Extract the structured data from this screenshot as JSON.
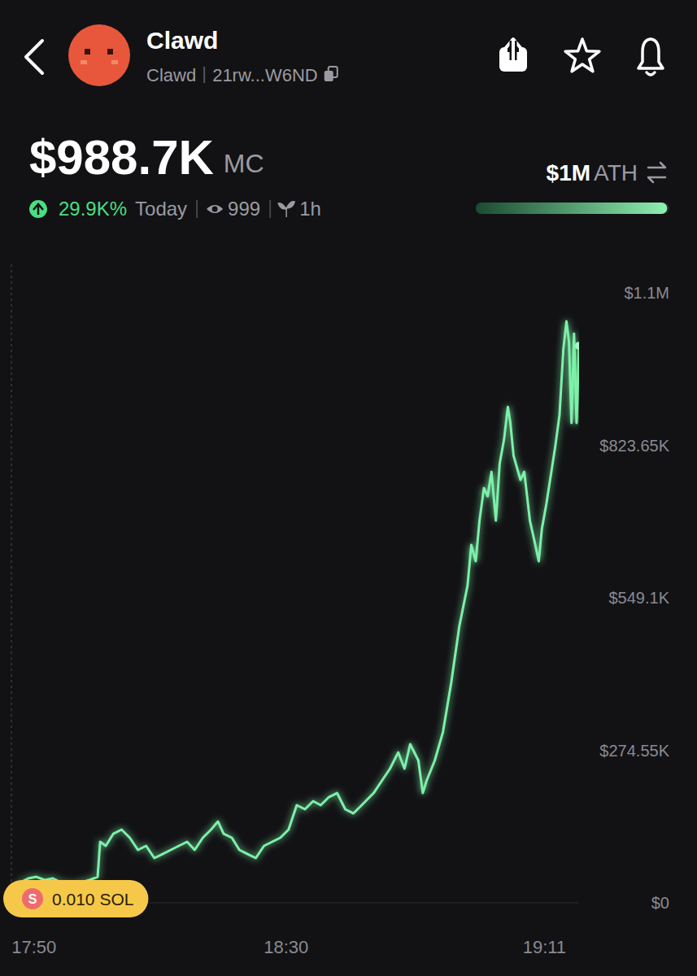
{
  "header": {
    "name": "Clawd",
    "symbol": "Clawd",
    "address": "21rw...W6ND",
    "market_cap": "$988.7K",
    "market_cap_unit": "MC",
    "change": "29.9K%",
    "period": "Today",
    "viewers": "999",
    "age": "1h",
    "ath": "$1M",
    "ath_label": "ATH",
    "market_cap_value": 988700,
    "ath_value": 1000000
  },
  "chart_data": {
    "type": "line",
    "color": "#7df0a9",
    "x": [
      1065.9,
      1066.5,
      1067.8,
      1069.1,
      1070.4,
      1071.7,
      1073.0,
      1074.3,
      1076.2,
      1077.5,
      1078.8,
      1080.1,
      1080.5,
      1081.4,
      1082.6,
      1083.9,
      1085.2,
      1086.5,
      1087.8,
      1089.1,
      1090.4,
      1091.7,
      1093.0,
      1094.3,
      1095.5,
      1096.8,
      1098.1,
      1099.2,
      1100.1,
      1101.4,
      1102.6,
      1103.9,
      1105.2,
      1106.5,
      1107.8,
      1109.1,
      1110.4,
      1111.7,
      1113.0,
      1114.3,
      1115.5,
      1116.8,
      1118.1,
      1119.4,
      1120.7,
      1122.0,
      1123.9,
      1125.2,
      1126.5,
      1127.8,
      1128.8,
      1129.7,
      1131.0,
      1131.7,
      1132.3,
      1133.6,
      1134.9,
      1136.2,
      1137.5,
      1138.8,
      1139.4,
      1140.1,
      1140.7,
      1141.4,
      1142.0,
      1142.6,
      1143.3,
      1143.9,
      1144.6,
      1145.2,
      1145.6,
      1146.1,
      1147.2,
      1147.8,
      1148.7,
      1149.7,
      1150.1,
      1150.6,
      1151.3,
      1152.1,
      1152.7,
      1153.4,
      1154.0,
      1154.5,
      1154.9,
      1155.3,
      1155.7,
      1156.1,
      1156.5
    ],
    "values": [
      0,
      14600,
      36600,
      43900,
      46800,
      41000,
      43900,
      36600,
      32200,
      36600,
      41000,
      46800,
      109800,
      102500,
      124400,
      131800,
      117100,
      95200,
      102500,
      80500,
      87800,
      95200,
      102500,
      109800,
      95200,
      117100,
      131800,
      146400,
      124400,
      117100,
      95200,
      87800,
      80500,
      102500,
      109800,
      117100,
      131800,
      175700,
      168400,
      183000,
      175700,
      190300,
      197600,
      168400,
      161000,
      175700,
      197600,
      219600,
      241600,
      270800,
      241600,
      285500,
      256200,
      197600,
      219600,
      256200,
      307400,
      395300,
      497800,
      571000,
      644200,
      614900,
      688100,
      746600,
      732000,
      775900,
      688100,
      790600,
      834500,
      893000,
      863800,
      805200,
      761300,
      775900,
      688100,
      636800,
      614900,
      673400,
      717400,
      775900,
      819800,
      878400,
      995500,
      1046800,
      1010200,
      863800,
      1024800,
      863800,
      1002800
    ],
    "xlim": [
      1065.9,
      1156.5
    ],
    "xticks": [
      {
        "value": 1070,
        "label": "17:50"
      },
      {
        "value": 1110,
        "label": "18:30"
      },
      {
        "value": 1151,
        "label": "19:11"
      }
    ],
    "ylim": [
      0,
      1098200
    ],
    "yticks": [
      {
        "value": 0,
        "label": "$0"
      },
      {
        "value": 274550,
        "label": "$274.55K"
      },
      {
        "value": 549100,
        "label": "$549.1K"
      },
      {
        "value": 823650,
        "label": "$823.65K"
      },
      {
        "value": 1098200,
        "label": "$1.1M"
      }
    ],
    "grid": false,
    "annotation": {
      "icon": "S",
      "text": "0.010 SOL"
    }
  }
}
